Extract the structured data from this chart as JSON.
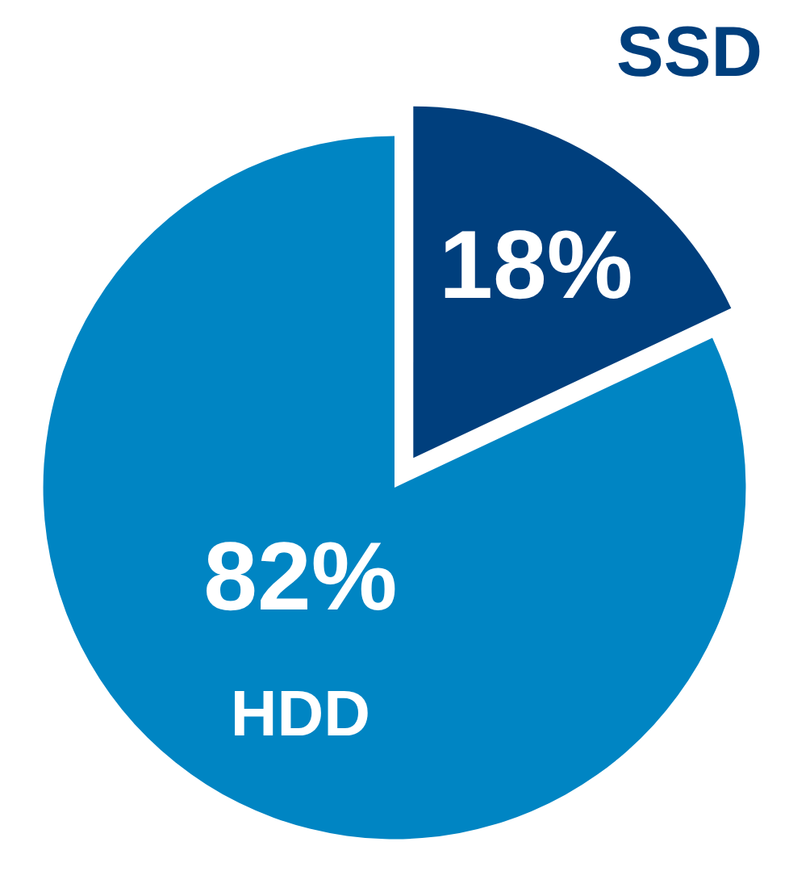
{
  "chart_data": {
    "type": "pie",
    "categories": [
      "SSD",
      "HDD"
    ],
    "values": [
      18,
      82
    ],
    "value_labels": [
      "18%",
      "82%"
    ],
    "colors": [
      "#003f7d",
      "#0085c3"
    ],
    "legend": false
  }
}
